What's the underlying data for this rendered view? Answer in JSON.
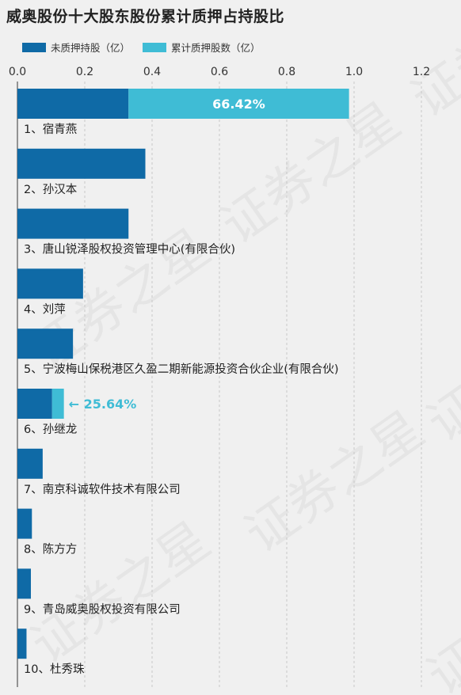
{
  "title": "威奥股份十大股东股份累计质押占持股比",
  "legend": {
    "unpledged_label": "未质押持股（亿）",
    "pledged_label": "累计质押股数（亿）"
  },
  "colors": {
    "unpledged": "#0f6aa6",
    "pledged": "#3fbcd5",
    "axis": "#555555",
    "grid": "#c8c8c8",
    "text": "#222222",
    "background": "#f0f0f0"
  },
  "watermark": "证券之星",
  "chart_data": {
    "type": "bar",
    "orientation": "horizontal",
    "stacked": true,
    "xlim": [
      0,
      1.2
    ],
    "xticks": [
      "0.0",
      "0.2",
      "0.4",
      "0.6",
      "0.8",
      "1.0",
      "1.2"
    ],
    "grid": true,
    "legend_position": "top-left",
    "categories": [
      "1、宿青燕",
      "2、孙汉本",
      "3、唐山锐泽股权投资管理中心(有限合伙)",
      "4、刘萍",
      "5、宁波梅山保税港区久盈二期新能源投资合伙企业(有限合伙)",
      "6、孙继龙",
      "7、南京科诚软件技术有限公司",
      "8、陈方方",
      "9、青岛威奥股权投资有限公司",
      "10、杜秀珠"
    ],
    "series": [
      {
        "name": "未质押持股（亿）",
        "values": [
          0.33,
          0.38,
          0.33,
          0.195,
          0.165,
          0.103,
          0.075,
          0.043,
          0.04,
          0.027
        ]
      },
      {
        "name": "累计质押股数（亿）",
        "values": [
          0.655,
          0,
          0,
          0,
          0,
          0.035,
          0,
          0,
          0,
          0
        ]
      }
    ],
    "annotations": [
      {
        "category_index": 0,
        "text": "66.42%",
        "style": "inside"
      },
      {
        "category_index": 5,
        "text": "← 25.64%",
        "style": "outside"
      }
    ]
  }
}
